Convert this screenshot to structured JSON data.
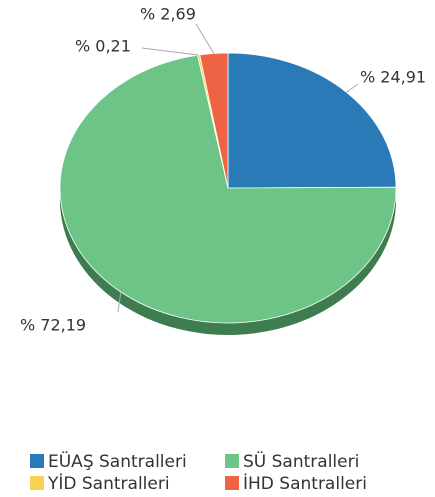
{
  "chart_data": {
    "type": "pie",
    "categories": [
      "EÜAŞ Santralleri",
      "SÜ Santralleri",
      "YİD Santralleri",
      "İHD Santralleri"
    ],
    "values": [
      24.91,
      72.19,
      0.21,
      2.69
    ],
    "value_labels": [
      "% 24,91",
      "% 72,19",
      "% 0,21",
      "% 2,69"
    ],
    "colors": [
      "#2a7ab8",
      "#6cc486",
      "#f7d154",
      "#ee6344"
    ],
    "side_colors": [
      "#1d5a89",
      "#3f7d50",
      "#b59a3c",
      "#a9452f"
    ]
  }
}
